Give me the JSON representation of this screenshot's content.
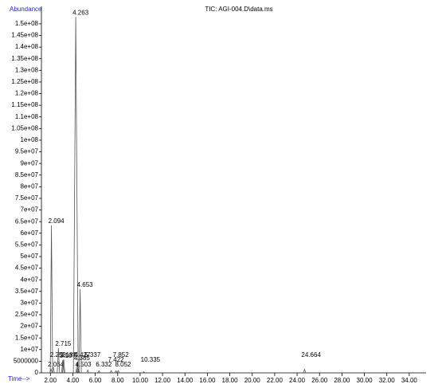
{
  "chart_data": {
    "type": "chromatogram",
    "title": "TIC: AGI-004.D\\data.ms",
    "y_label": "Abundance",
    "x_label": "Time-->",
    "x": [
      2.064,
      2.094,
      2.253,
      2.715,
      3.107,
      3.187,
      4.263,
      4.385,
      4.427,
      4.503,
      4.653,
      5.337,
      6.332,
      7.422,
      7.852,
      8.052,
      10.335,
      24.664
    ],
    "values": [
      1500000,
      63400000,
      2500000,
      10600000,
      5500000,
      5800000,
      153000000,
      4500000,
      2000000,
      1500000,
      36000000,
      1200000,
      900000,
      1000000,
      900000,
      1000000,
      500000,
      1500000
    ],
    "color": "#555555",
    "label_color": "#1f1fd6",
    "xlim": [
      1.2,
      35.5
    ],
    "ylim": [
      0,
      157500000
    ],
    "xticks": [
      {
        "value": 2,
        "label": "2.00"
      },
      {
        "value": 4,
        "label": "4.00"
      },
      {
        "value": 6,
        "label": "6.00"
      },
      {
        "value": 8,
        "label": "8.00"
      },
      {
        "value": 10,
        "label": "10.00"
      },
      {
        "value": 12,
        "label": "12.00"
      },
      {
        "value": 14,
        "label": "14.00"
      },
      {
        "value": 16,
        "label": "16.00"
      },
      {
        "value": 18,
        "label": "18.00"
      },
      {
        "value": 20,
        "label": "20.00"
      },
      {
        "value": 22,
        "label": "22.00"
      },
      {
        "value": 24,
        "label": "24.00"
      },
      {
        "value": 26,
        "label": "26.00"
      },
      {
        "value": 28,
        "label": "28.00"
      },
      {
        "value": 30,
        "label": "30.00"
      },
      {
        "value": 32,
        "label": "32.00"
      },
      {
        "value": 34,
        "label": "34.00"
      }
    ],
    "yticks": [
      0,
      5000000,
      {
        "value": 10000000,
        "label": "1e+07"
      },
      {
        "value": 15000000,
        "label": "1.5e+07"
      },
      {
        "value": 20000000,
        "label": "2e+07"
      },
      {
        "value": 25000000,
        "label": "2.5e+07"
      },
      {
        "value": 30000000,
        "label": "3e+07"
      },
      {
        "value": 35000000,
        "label": "3.5e+07"
      },
      {
        "value": 40000000,
        "label": "4e+07"
      },
      {
        "value": 45000000,
        "label": "4.5e+07"
      },
      {
        "value": 50000000,
        "label": "5e+07"
      },
      {
        "value": 55000000,
        "label": "5.5e+07"
      },
      {
        "value": 60000000,
        "label": "6e+07"
      },
      {
        "value": 65000000,
        "label": "6.5e+07"
      },
      {
        "value": 70000000,
        "label": "7e+07"
      },
      {
        "value": 75000000,
        "label": "7.5e+07"
      },
      {
        "value": 80000000,
        "label": "8e+07"
      },
      {
        "value": 85000000,
        "label": "8.5e+07"
      },
      {
        "value": 90000000,
        "label": "9e+07"
      },
      {
        "value": 95000000,
        "label": "9.5e+07"
      },
      {
        "value": 100000000,
        "label": "1e+08"
      },
      {
        "value": 105000000,
        "label": "1.05e+08"
      },
      {
        "value": 110000000,
        "label": "1.1e+08"
      },
      {
        "value": 115000000,
        "label": "1.15e+08"
      },
      {
        "value": 120000000,
        "label": "1.2e+08"
      },
      {
        "value": 125000000,
        "label": "1.25e+08"
      },
      {
        "value": 130000000,
        "label": "1.3e+08"
      },
      {
        "value": 135000000,
        "label": "1.35e+08"
      },
      {
        "value": 140000000,
        "label": "1.4e+08"
      },
      {
        "value": 145000000,
        "label": "1.45e+08"
      },
      {
        "value": 150000000,
        "label": "1.5e+08"
      }
    ]
  }
}
